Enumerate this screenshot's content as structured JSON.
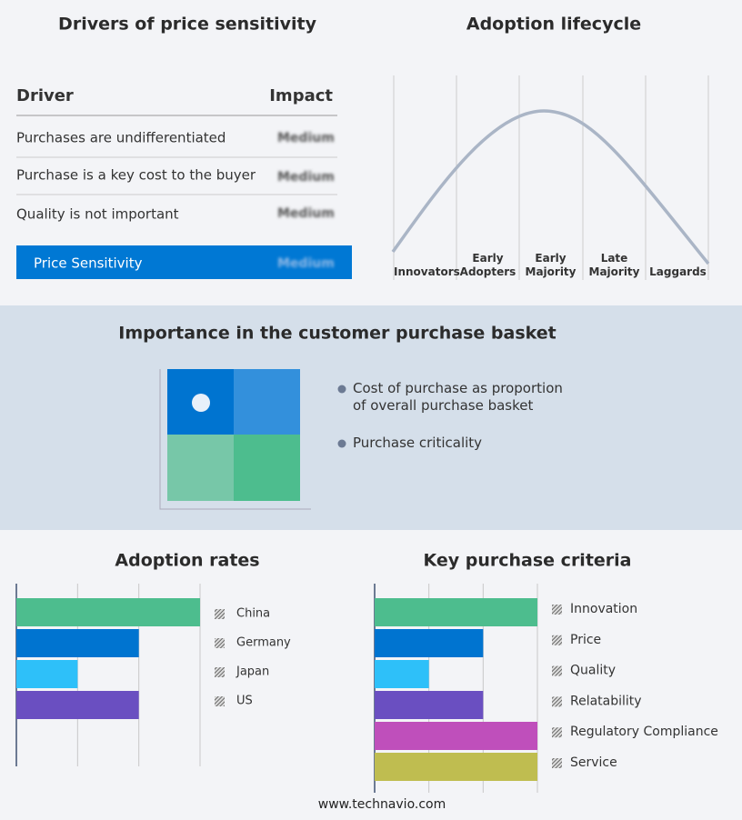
{
  "drivers": {
    "title": "Drivers of price sensitivity",
    "header": [
      "Driver",
      "Impact"
    ],
    "rows": [
      [
        "Purchases are undifferentiated",
        "Medium"
      ],
      [
        "Purchase is a key cost to the buyer",
        "Medium"
      ],
      [
        "Quality is not important",
        "Medium"
      ]
    ],
    "summary": [
      "Price Sensitivity",
      "Medium"
    ]
  },
  "lifecycle": {
    "title": "Adoption lifecycle",
    "stages": [
      "Innovators",
      "Early Adopters",
      "Early Majority",
      "Late Majority",
      "Laggards"
    ]
  },
  "basket": {
    "title": "Importance in the customer purchase basket",
    "legend": [
      "Cost of purchase as proportion of overall purchase basket",
      "Purchase criticality"
    ]
  },
  "chart_data": [
    {
      "type": "bar",
      "title": "Adoption rates",
      "categories": [
        "China",
        "Germany",
        "Japan",
        "US"
      ],
      "series": [
        {
          "values": [
            3,
            2,
            1,
            2
          ]
        }
      ],
      "colors": [
        "#4dbd8e",
        "#0074d0",
        "#2ec0f9",
        "#6a4fc1"
      ],
      "xlim": [
        0,
        3
      ],
      "xticks": [
        0,
        1,
        2,
        3
      ],
      "grid": true
    },
    {
      "type": "bar",
      "title": "Key purchase criteria",
      "categories": [
        "Innovation",
        "Price",
        "Quality",
        "Relatability",
        "Regulatory Compliance",
        "Service"
      ],
      "series": [
        {
          "values": [
            3,
            2,
            1,
            2,
            3,
            3
          ]
        }
      ],
      "colors": [
        "#4dbd8e",
        "#0074d0",
        "#2ec0f9",
        "#6a4fc1",
        "#bf4fbb",
        "#bfbd50"
      ],
      "xlim": [
        0,
        3
      ],
      "xticks": [
        0,
        1,
        2,
        3
      ],
      "grid": true
    }
  ],
  "footer": "www.technavio.com"
}
